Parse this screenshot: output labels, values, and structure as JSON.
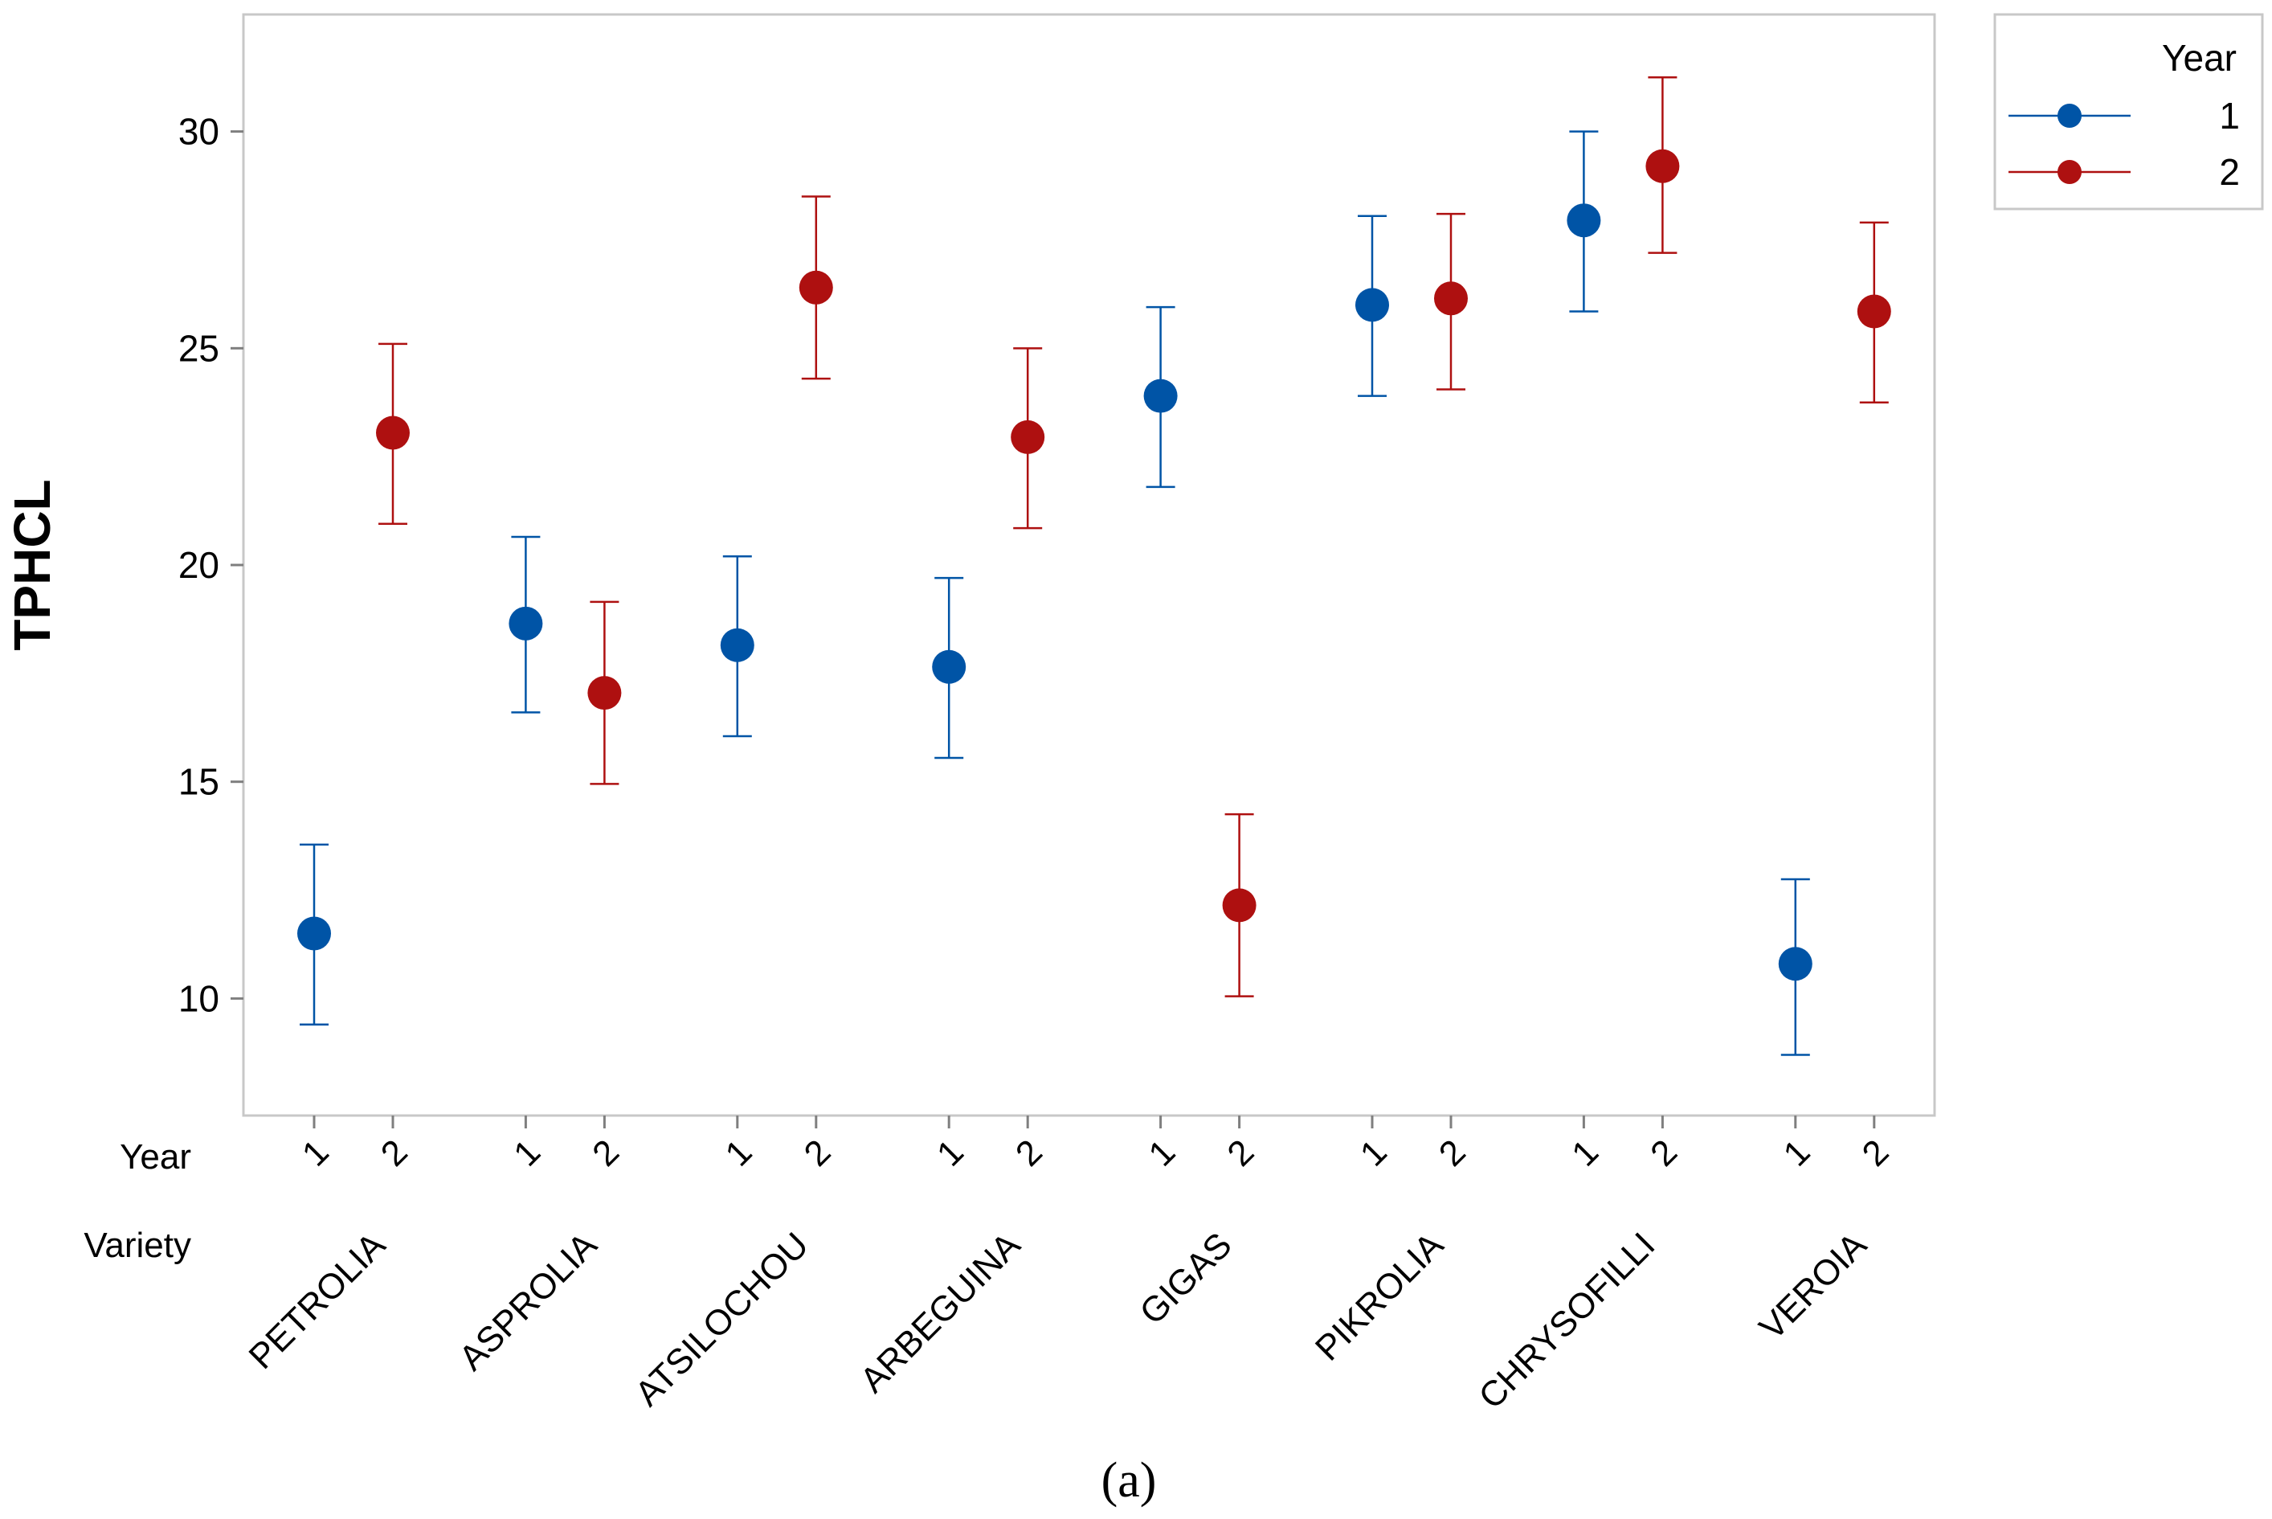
{
  "chart_data": {
    "type": "interval",
    "ylabel": "TPHCL",
    "ylim": [
      7.3,
      32.7
    ],
    "yticks": [
      10,
      15,
      20,
      25,
      30
    ],
    "grid": false,
    "row_labels": {
      "year": "Year",
      "variety": "Variety"
    },
    "varieties": [
      "PETROLIA",
      "ASPROLIA",
      "ATSILOCHOU",
      "ARBEGUINA",
      "GIGAS",
      "PIKROLIA",
      "CHRYSOFILLI",
      "VEROIA"
    ],
    "years": [
      "1",
      "2"
    ],
    "legend": {
      "title": "Year",
      "position": "top-right"
    },
    "series": [
      {
        "name": "1",
        "color": "#0054A6",
        "values": [
          11.5,
          18.65,
          18.15,
          17.65,
          23.9,
          26.0,
          27.95,
          10.8
        ],
        "lower": [
          9.4,
          16.6,
          16.05,
          15.55,
          21.8,
          23.9,
          25.85,
          8.7
        ],
        "upper": [
          13.55,
          20.65,
          20.2,
          19.7,
          25.95,
          28.05,
          30.0,
          12.75
        ]
      },
      {
        "name": "2",
        "color": "#AE1010",
        "values": [
          23.05,
          17.05,
          26.4,
          22.95,
          12.15,
          26.15,
          29.2,
          25.85
        ],
        "lower": [
          20.95,
          14.95,
          24.3,
          20.85,
          10.05,
          24.05,
          27.2,
          23.75
        ],
        "upper": [
          25.1,
          19.15,
          28.5,
          25.0,
          14.25,
          28.1,
          31.25,
          27.9
        ]
      }
    ]
  },
  "caption": "(a)"
}
